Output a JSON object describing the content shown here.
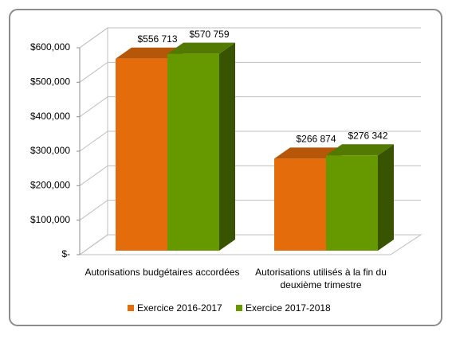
{
  "chart_data": {
    "type": "bar3d",
    "categories": [
      "Autorisations budgétaires accordées",
      "Autorisations utilisés à la fin du deuxième trimestre"
    ],
    "series": [
      {
        "name": "Exercice 2016-2017",
        "color": "#e46c0a",
        "values": [
          556713,
          266874
        ],
        "value_labels": [
          "$556 713",
          "$266 874"
        ]
      },
      {
        "name": "Exercice 2017-2018",
        "color": "#669900",
        "values": [
          570759,
          276342
        ],
        "value_labels": [
          "$570 759",
          "$276 342"
        ]
      }
    ],
    "ylim": [
      0,
      600000
    ],
    "yticks": [
      {
        "value": 0,
        "label": "$-"
      },
      {
        "value": 100000,
        "label": "$100,000"
      },
      {
        "value": 200000,
        "label": "$200,000"
      },
      {
        "value": 300000,
        "label": "$300,000"
      },
      {
        "value": 400000,
        "label": "$400,000"
      },
      {
        "value": 500000,
        "label": "$500,000"
      },
      {
        "value": 600000,
        "label": "$600,000"
      }
    ],
    "grid": true,
    "legend": "bottom"
  }
}
